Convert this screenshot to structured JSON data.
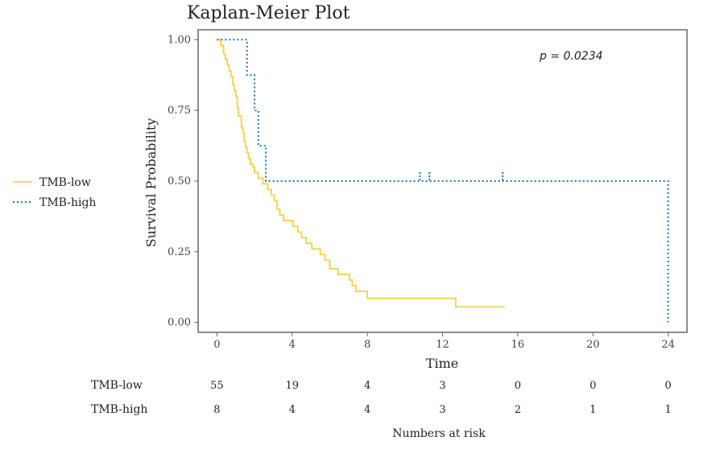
{
  "chart_data": {
    "type": "line",
    "title": "Kaplan-Meier Plot",
    "xlabel": "Time",
    "ylabel": "Survival Probability",
    "xlim": [
      -1,
      25
    ],
    "ylim": [
      -0.035,
      1.035
    ],
    "x_ticks": [
      0,
      4,
      8,
      12,
      16,
      20,
      24
    ],
    "y_ticks": [
      0,
      0.25,
      0.5,
      0.75,
      1.0
    ],
    "x_tick_labels": [
      "0",
      "4",
      "8",
      "12",
      "16",
      "20",
      "24"
    ],
    "y_tick_labels": [
      "0.00",
      "0.25",
      "0.50",
      "0.75",
      "1.00"
    ],
    "annotation": "p = 0.0234",
    "legend_position": "left",
    "grid": false,
    "series": [
      {
        "name": "TMB-low",
        "color": "#F5D04C",
        "dash": "solid",
        "steps": [
          [
            0,
            1.0
          ],
          [
            0.2,
            0.98
          ],
          [
            0.35,
            0.95
          ],
          [
            0.45,
            0.93
          ],
          [
            0.55,
            0.91
          ],
          [
            0.65,
            0.89
          ],
          [
            0.75,
            0.87
          ],
          [
            0.85,
            0.84
          ],
          [
            0.92,
            0.82
          ],
          [
            1.0,
            0.8
          ],
          [
            1.08,
            0.76
          ],
          [
            1.15,
            0.73
          ],
          [
            1.3,
            0.69
          ],
          [
            1.38,
            0.67
          ],
          [
            1.45,
            0.64
          ],
          [
            1.52,
            0.62
          ],
          [
            1.6,
            0.6
          ],
          [
            1.68,
            0.58
          ],
          [
            1.78,
            0.56
          ],
          [
            1.9,
            0.55
          ],
          [
            2.0,
            0.53
          ],
          [
            2.2,
            0.51
          ],
          [
            2.45,
            0.49
          ],
          [
            2.7,
            0.47
          ],
          [
            2.9,
            0.45
          ],
          [
            3.05,
            0.43
          ],
          [
            3.2,
            0.4
          ],
          [
            3.35,
            0.38
          ],
          [
            3.55,
            0.36
          ],
          [
            4.05,
            0.34
          ],
          [
            4.3,
            0.32
          ],
          [
            4.5,
            0.3
          ],
          [
            4.75,
            0.28
          ],
          [
            5.05,
            0.26
          ],
          [
            5.5,
            0.24
          ],
          [
            5.75,
            0.22
          ],
          [
            6.0,
            0.19
          ],
          [
            6.45,
            0.17
          ],
          [
            7.05,
            0.15
          ],
          [
            7.2,
            0.13
          ],
          [
            7.4,
            0.11
          ],
          [
            8.0,
            0.085
          ],
          [
            12.7,
            0.055
          ],
          [
            15.3,
            0.055
          ]
        ],
        "censor_times": []
      },
      {
        "name": "TMB-high",
        "color": "#1F77B4",
        "dash": "dotted",
        "steps": [
          [
            0,
            1.0
          ],
          [
            1.6,
            0.875
          ],
          [
            2.0,
            0.75
          ],
          [
            2.2,
            0.625
          ],
          [
            2.6,
            0.5
          ],
          [
            24.0,
            0.0
          ]
        ],
        "censor_times": [
          10.8,
          11.3,
          15.2
        ]
      }
    ],
    "risk_table": {
      "title": "Numbers at risk",
      "times": [
        0,
        4,
        8,
        12,
        16,
        20,
        24
      ],
      "rows": [
        {
          "label": "TMB-low",
          "values": [
            "55",
            "19",
            "4",
            "3",
            "0",
            "0",
            "0"
          ]
        },
        {
          "label": "TMB-high",
          "values": [
            "8",
            "4",
            "4",
            "3",
            "2",
            "1",
            "1"
          ]
        }
      ]
    }
  }
}
